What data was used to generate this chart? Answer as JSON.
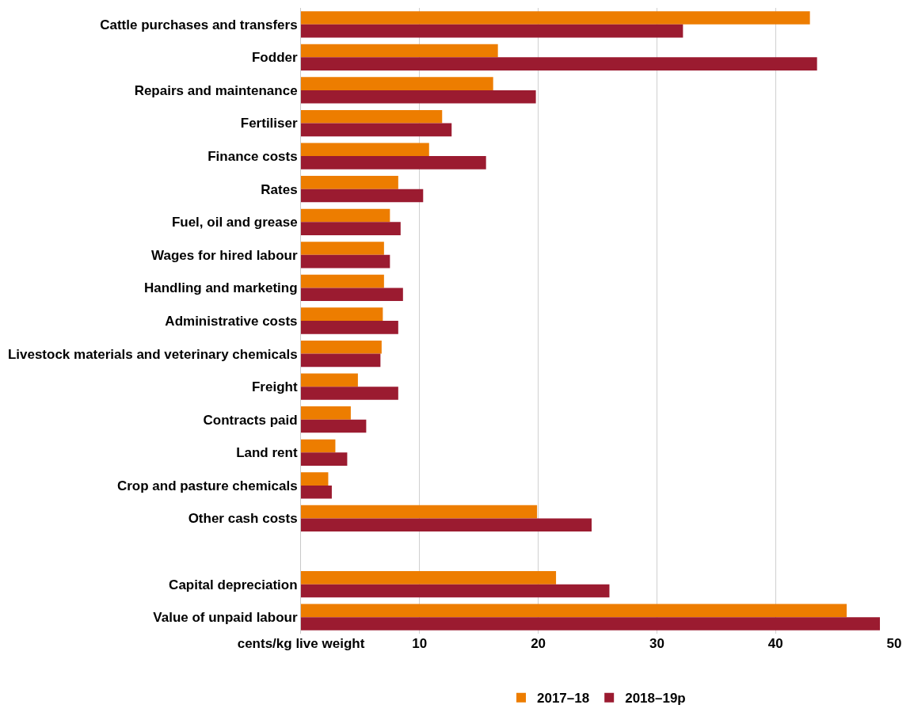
{
  "chart_data": {
    "type": "bar",
    "orientation": "horizontal",
    "categories": [
      "Cattle purchases and transfers",
      "Fodder",
      "Repairs and maintenance",
      "Fertiliser",
      "Finance costs",
      "Rates",
      "Fuel, oil and grease",
      "Wages for hired labour",
      "Handling and marketing",
      "Administrative costs",
      "Livestock materials and veterinary chemicals",
      "Freight",
      "Contracts paid",
      "Land rent",
      "Crop and pasture chemicals",
      "Other cash costs",
      null,
      "Capital depreciation",
      "Value of unpaid labour"
    ],
    "series": [
      {
        "name": "2017–18",
        "color": "#ed7d00",
        "values": [
          42.9,
          16.6,
          16.2,
          11.9,
          10.8,
          8.2,
          7.5,
          7.0,
          7.0,
          6.9,
          6.8,
          4.8,
          4.2,
          2.9,
          2.3,
          19.9,
          null,
          21.5,
          46.0
        ]
      },
      {
        "name": "2018–19p",
        "color": "#9b1b30",
        "values": [
          32.2,
          43.5,
          19.8,
          12.7,
          15.6,
          10.3,
          8.4,
          7.5,
          8.6,
          8.2,
          6.7,
          8.2,
          5.5,
          3.9,
          2.6,
          24.5,
          null,
          26.0,
          48.8
        ]
      }
    ],
    "xlim": [
      0,
      50
    ],
    "xticks": [
      {
        "value": 0,
        "label": "cents/kg live weight"
      },
      10,
      20,
      30,
      40,
      50
    ],
    "grid": "x",
    "legend": "bottom"
  }
}
